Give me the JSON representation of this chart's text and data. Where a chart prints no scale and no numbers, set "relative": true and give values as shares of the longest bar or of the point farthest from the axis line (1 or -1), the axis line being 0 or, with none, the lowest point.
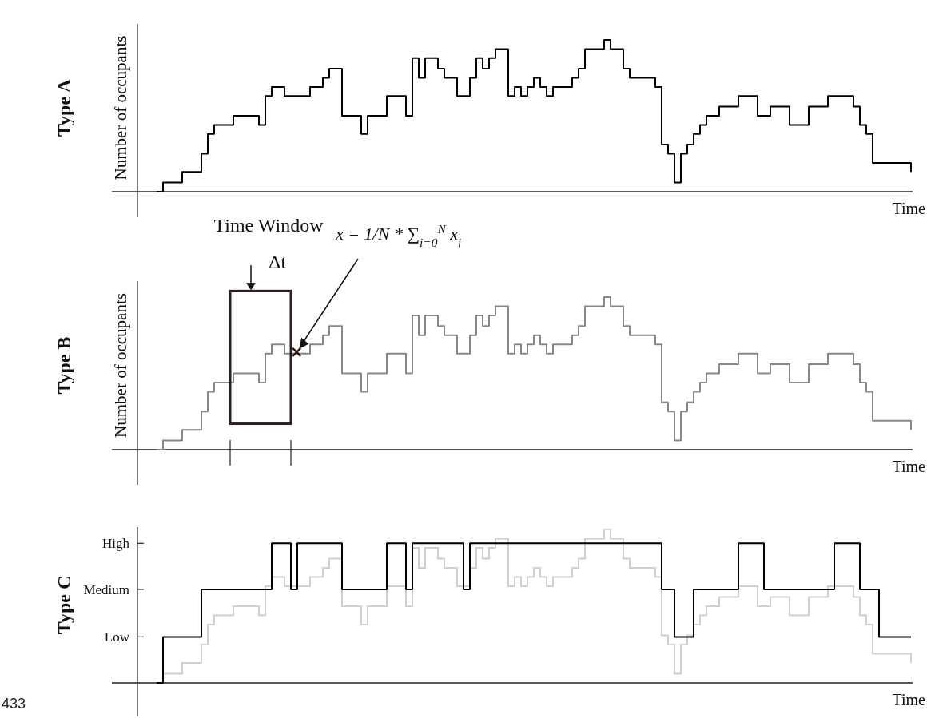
{
  "chart_data": [
    {
      "type": "step",
      "title": "Type A",
      "ylabel": "Number of occupants",
      "xlabel": "Time",
      "relative": true,
      "categories": [
        null,
        null,
        null,
        null,
        null,
        null,
        null,
        null,
        null,
        null,
        null,
        null,
        null,
        null,
        null,
        null,
        null,
        null,
        null,
        null,
        null,
        null,
        null,
        null,
        null,
        null,
        null,
        null,
        null,
        null,
        null,
        null,
        null,
        null,
        null,
        null,
        null,
        null,
        null,
        null,
        null,
        null,
        null,
        null,
        null,
        null,
        null,
        null,
        null,
        null,
        null,
        null,
        null,
        null,
        null,
        null,
        null,
        null,
        null,
        null,
        null,
        null,
        null,
        null,
        null,
        null,
        null,
        null,
        null,
        null,
        null,
        null,
        null,
        null,
        null,
        null,
        null,
        null,
        null,
        null,
        null,
        null,
        null,
        null,
        null,
        null,
        null,
        null,
        null,
        null,
        null,
        null,
        null,
        null,
        null,
        null,
        null,
        null,
        null,
        null,
        null,
        null,
        null,
        null,
        null,
        null,
        null,
        null,
        null,
        null,
        null,
        null,
        null,
        null,
        null,
        null,
        null,
        null,
        null
      ],
      "series": [
        {
          "color": "#000000",
          "values": [
            0,
            0.06,
            0.06,
            0.06,
            0.13,
            0.13,
            0.13,
            0.25,
            0.38,
            0.44,
            0.44,
            0.44,
            0.5,
            0.5,
            0.5,
            0.5,
            0.44,
            0.63,
            0.69,
            0.69,
            0.63,
            0.63,
            0.63,
            0.63,
            0.69,
            0.69,
            0.75,
            0.81,
            0.81,
            0.5,
            0.5,
            0.5,
            0.38,
            0.5,
            0.5,
            0.5,
            0.63,
            0.63,
            0.63,
            0.5,
            0.88,
            0.75,
            0.88,
            0.88,
            0.81,
            0.75,
            0.75,
            0.63,
            0.63,
            0.75,
            0.88,
            0.81,
            0.88,
            0.94,
            0.94,
            0.63,
            0.69,
            0.63,
            0.69,
            0.75,
            0.69,
            0.63,
            0.69,
            0.69,
            0.69,
            0.75,
            0.81,
            0.94,
            0.94,
            0.94,
            1,
            0.94,
            0.94,
            0.81,
            0.75,
            0.75,
            0.75,
            0.75,
            0.69,
            0.31,
            0.25,
            0.06,
            0.25,
            0.31,
            0.38,
            0.44,
            0.5,
            0.5,
            0.56,
            0.56,
            0.56,
            0.63,
            0.63,
            0.63,
            0.5,
            0.5,
            0.56,
            0.56,
            0.56,
            0.44,
            0.44,
            0.44,
            0.56,
            0.56,
            0.56,
            0.63,
            0.63,
            0.63,
            0.63,
            0.56,
            0.44,
            0.38,
            0.19,
            0.19,
            0.19,
            0.19,
            0.19,
            0.19,
            0.13
          ]
        }
      ]
    },
    {
      "type": "step",
      "title": "Type B",
      "ylabel": "Number of occupants",
      "xlabel": "Time",
      "relative": true,
      "annotations": [
        "Time Window",
        "Δt",
        "x = 1/N * ∑$_{i=0}$$^{N}$ x$_{i}$"
      ],
      "categories": [
        null,
        null,
        null,
        null,
        null,
        null,
        null,
        null,
        null,
        null,
        null,
        null,
        null,
        null,
        null,
        null,
        null,
        null,
        null,
        null,
        null,
        null,
        null,
        null,
        null,
        null,
        null,
        null,
        null,
        null,
        null,
        null,
        null,
        null,
        null,
        null,
        null,
        null,
        null,
        null,
        null,
        null,
        null,
        null,
        null,
        null,
        null,
        null,
        null,
        null,
        null,
        null,
        null,
        null,
        null,
        null,
        null,
        null,
        null,
        null,
        null,
        null,
        null,
        null,
        null,
        null,
        null,
        null,
        null,
        null,
        null,
        null,
        null,
        null,
        null,
        null,
        null,
        null,
        null,
        null,
        null,
        null,
        null,
        null,
        null,
        null,
        null,
        null,
        null,
        null,
        null,
        null,
        null,
        null,
        null,
        null,
        null,
        null,
        null,
        null,
        null,
        null,
        null,
        null,
        null,
        null,
        null,
        null,
        null,
        null,
        null,
        null,
        null,
        null,
        null,
        null,
        null,
        null,
        null
      ],
      "series": [
        {
          "color": "#888888",
          "values": [
            0,
            0.06,
            0.06,
            0.06,
            0.13,
            0.13,
            0.13,
            0.25,
            0.38,
            0.44,
            0.44,
            0.44,
            0.5,
            0.5,
            0.5,
            0.5,
            0.44,
            0.63,
            0.69,
            0.69,
            0.63,
            0.63,
            0.63,
            0.63,
            0.69,
            0.69,
            0.75,
            0.81,
            0.81,
            0.5,
            0.5,
            0.5,
            0.38,
            0.5,
            0.5,
            0.5,
            0.63,
            0.63,
            0.63,
            0.5,
            0.88,
            0.75,
            0.88,
            0.88,
            0.81,
            0.75,
            0.75,
            0.63,
            0.63,
            0.75,
            0.88,
            0.81,
            0.88,
            0.94,
            0.94,
            0.63,
            0.69,
            0.63,
            0.69,
            0.75,
            0.69,
            0.63,
            0.69,
            0.69,
            0.69,
            0.75,
            0.81,
            0.94,
            0.94,
            0.94,
            1,
            0.94,
            0.94,
            0.81,
            0.75,
            0.75,
            0.75,
            0.75,
            0.69,
            0.31,
            0.25,
            0.06,
            0.25,
            0.31,
            0.38,
            0.44,
            0.5,
            0.5,
            0.56,
            0.56,
            0.56,
            0.63,
            0.63,
            0.63,
            0.5,
            0.5,
            0.56,
            0.56,
            0.56,
            0.44,
            0.44,
            0.44,
            0.56,
            0.56,
            0.56,
            0.63,
            0.63,
            0.63,
            0.63,
            0.56,
            0.44,
            0.38,
            0.19,
            0.19,
            0.19,
            0.19,
            0.19,
            0.19,
            0.13
          ]
        }
      ]
    },
    {
      "type": "step",
      "title": "Type C",
      "xlabel": "Time",
      "relative": true,
      "annotations": [
        "Low",
        "Medium",
        "High",
        "433"
      ],
      "categories": [
        null,
        null,
        null,
        null,
        null,
        null,
        null,
        null,
        null,
        null,
        null,
        null,
        null,
        null,
        null,
        null,
        null,
        null,
        null,
        null,
        null,
        null,
        null,
        null,
        null,
        null,
        null,
        null,
        null,
        null,
        null,
        null,
        null,
        null,
        null,
        null,
        null,
        null,
        null,
        null,
        null,
        null,
        null,
        null,
        null,
        null,
        null,
        null,
        null,
        null,
        null,
        null,
        null,
        null,
        null,
        null,
        null,
        null,
        null,
        null,
        null,
        null,
        null,
        null,
        null,
        null,
        null,
        null,
        null,
        null,
        null,
        null,
        null,
        null,
        null,
        null,
        null,
        null,
        null,
        null,
        null,
        null,
        null,
        null,
        null,
        null,
        null,
        null,
        null,
        null,
        null,
        null,
        null,
        null,
        null,
        null,
        null,
        null,
        null,
        null,
        null,
        null,
        null,
        null,
        null,
        null,
        null,
        null,
        null,
        null,
        null,
        null,
        null,
        null,
        null,
        null,
        null,
        null,
        null
      ],
      "series": [
        {
          "color": "#d0d0d0",
          "values": [
            0,
            0.06,
            0.06,
            0.06,
            0.13,
            0.13,
            0.13,
            0.25,
            0.38,
            0.44,
            0.44,
            0.44,
            0.5,
            0.5,
            0.5,
            0.5,
            0.44,
            0.63,
            0.69,
            0.69,
            0.63,
            0.63,
            0.63,
            0.63,
            0.69,
            0.69,
            0.75,
            0.81,
            0.81,
            0.5,
            0.5,
            0.5,
            0.38,
            0.5,
            0.5,
            0.5,
            0.63,
            0.63,
            0.63,
            0.5,
            0.88,
            0.75,
            0.88,
            0.88,
            0.81,
            0.75,
            0.75,
            0.63,
            0.63,
            0.75,
            0.88,
            0.81,
            0.88,
            0.94,
            0.94,
            0.63,
            0.69,
            0.63,
            0.69,
            0.75,
            0.69,
            0.63,
            0.69,
            0.69,
            0.69,
            0.75,
            0.81,
            0.94,
            0.94,
            0.94,
            1,
            0.94,
            0.94,
            0.81,
            0.75,
            0.75,
            0.75,
            0.75,
            0.69,
            0.31,
            0.25,
            0.06,
            0.25,
            0.31,
            0.38,
            0.44,
            0.5,
            0.5,
            0.56,
            0.56,
            0.56,
            0.63,
            0.63,
            0.63,
            0.5,
            0.5,
            0.56,
            0.56,
            0.56,
            0.44,
            0.44,
            0.44,
            0.56,
            0.56,
            0.56,
            0.63,
            0.63,
            0.63,
            0.63,
            0.56,
            0.44,
            0.38,
            0.19,
            0.19,
            0.19,
            0.19,
            0.19,
            0.19,
            0.13
          ]
        },
        {
          "color": "#000000",
          "values": [
            0,
            0.3,
            0.3,
            0.3,
            0.3,
            0.3,
            0.3,
            0.61,
            0.61,
            0.61,
            0.61,
            0.61,
            0.61,
            0.61,
            0.61,
            0.61,
            0.61,
            0.61,
            0.91,
            0.91,
            0.91,
            0.61,
            0.91,
            0.91,
            0.91,
            0.91,
            0.91,
            0.91,
            0.91,
            0.61,
            0.61,
            0.61,
            0.61,
            0.61,
            0.61,
            0.61,
            0.91,
            0.91,
            0.91,
            0.61,
            0.91,
            0.91,
            0.91,
            0.91,
            0.91,
            0.91,
            0.91,
            0.91,
            0.61,
            0.91,
            0.91,
            0.91,
            0.91,
            0.91,
            0.91,
            0.91,
            0.91,
            0.91,
            0.91,
            0.91,
            0.91,
            0.91,
            0.91,
            0.91,
            0.91,
            0.91,
            0.91,
            0.91,
            0.91,
            0.91,
            0.91,
            0.91,
            0.91,
            0.91,
            0.91,
            0.91,
            0.91,
            0.91,
            0.91,
            0.61,
            0.61,
            0.3,
            0.3,
            0.3,
            0.61,
            0.61,
            0.61,
            0.61,
            0.61,
            0.61,
            0.61,
            0.91,
            0.91,
            0.91,
            0.91,
            0.61,
            0.61,
            0.61,
            0.61,
            0.61,
            0.61,
            0.61,
            0.61,
            0.61,
            0.61,
            0.61,
            0.91,
            0.91,
            0.91,
            0.91,
            0.61,
            0.61,
            0.61,
            0.3,
            0.3,
            0.3,
            0.3,
            0.3,
            0.3
          ]
        }
      ]
    }
  ]
}
